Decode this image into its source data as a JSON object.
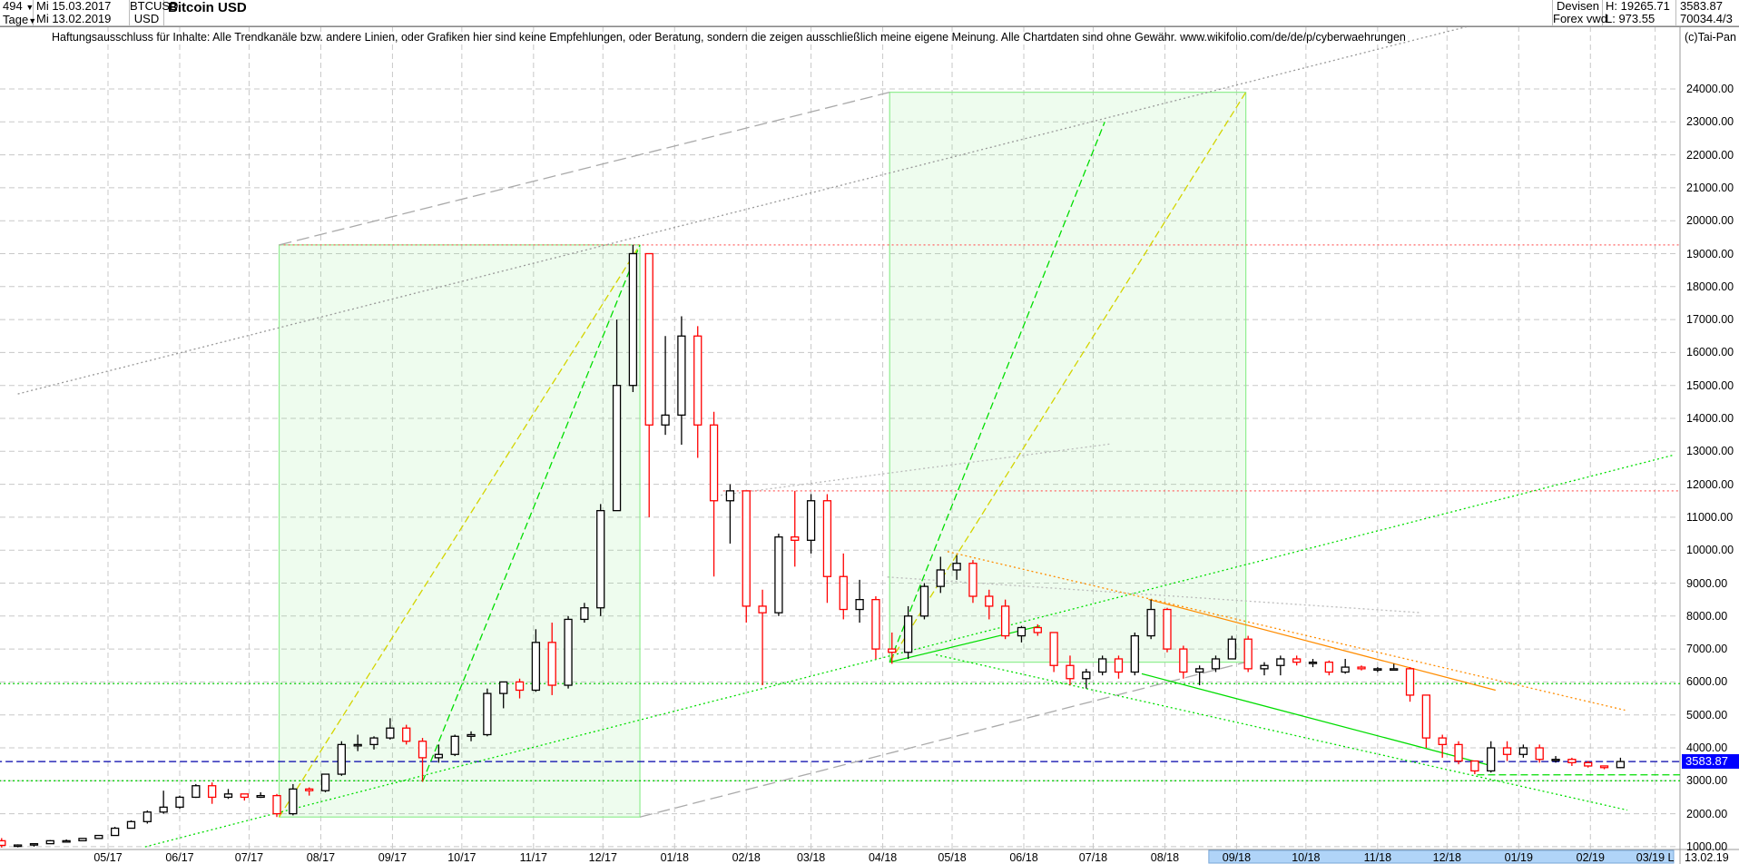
{
  "header": {
    "count": "494",
    "period": "Tage",
    "start_date": "Mi 15.03.2017",
    "end_date": "Mi 13.02.2019",
    "symbol": "BTCUSD",
    "currency": "USD",
    "title": "Bitcoin USD",
    "category": "Devisen",
    "source": "Forex vwd",
    "high": "H: 19265.71",
    "low": "L: 973.55",
    "last": "3583.87",
    "volume": "70034.4/3"
  },
  "disclaimer": "Haftungsausschluss für Inhalte: Alle Trendkanäle bzw. andere Linien, oder Grafiken hier sind keine Empfehlungen, oder Beratung, sondern die zeigen ausschließlich meine eigene Meinung. Alle Chartdaten sind ohne Gewähr.  www.wikifolio.com/de/de/p/cyberwaehrungen",
  "copyright": "(c)Tai-Pan",
  "end_date_label": "13.02.19",
  "last_marker": "L",
  "colors": {
    "up": "#000000",
    "down": "#ff0000",
    "box": "#90ee90",
    "price_label": "#0000ff"
  },
  "chart_data": {
    "type": "candlestick",
    "title": "Bitcoin USD",
    "grid": true,
    "ylim": [
      1000,
      24000
    ],
    "y_ticks": [
      "1000.00",
      "2000.00",
      "3000.00",
      "4000.00",
      "5000.00",
      "6000.00",
      "7000.00",
      "8000.00",
      "9000.00",
      "10000.00",
      "11000.00",
      "12000.00",
      "13000.00",
      "14000.00",
      "15000.00",
      "16000.00",
      "17000.00",
      "18000.00",
      "19000.00",
      "20000.00",
      "21000.00",
      "22000.00",
      "23000.00",
      "24000.00"
    ],
    "x_ticks": [
      {
        "label": "05/17",
        "date": "2017-05-01"
      },
      {
        "label": "06/17",
        "date": "2017-06-01"
      },
      {
        "label": "07/17",
        "date": "2017-07-01"
      },
      {
        "label": "08/17",
        "date": "2017-08-01"
      },
      {
        "label": "09/17",
        "date": "2017-09-01"
      },
      {
        "label": "10/17",
        "date": "2017-10-01"
      },
      {
        "label": "11/17",
        "date": "2017-11-01"
      },
      {
        "label": "12/17",
        "date": "2017-12-01"
      },
      {
        "label": "01/18",
        "date": "2018-01-01"
      },
      {
        "label": "02/18",
        "date": "2018-02-01"
      },
      {
        "label": "03/18",
        "date": "2018-03-01"
      },
      {
        "label": "04/18",
        "date": "2018-04-01"
      },
      {
        "label": "05/18",
        "date": "2018-05-01"
      },
      {
        "label": "06/18",
        "date": "2018-06-01"
      },
      {
        "label": "07/18",
        "date": "2018-07-01"
      },
      {
        "label": "08/18",
        "date": "2018-08-01"
      },
      {
        "label": "09/18",
        "date": "2018-09-01"
      },
      {
        "label": "10/18",
        "date": "2018-10-01"
      },
      {
        "label": "11/18",
        "date": "2018-11-01"
      },
      {
        "label": "12/18",
        "date": "2018-12-01"
      },
      {
        "label": "01/19",
        "date": "2019-01-01"
      },
      {
        "label": "02/19",
        "date": "2019-02-01"
      },
      {
        "label": "03/19",
        "date": "2019-03-01"
      }
    ],
    "last_price": 3583.87,
    "ohlc": [
      [
        "2017-03-13",
        1180,
        1260,
        974,
        1040
      ],
      [
        "2017-03-20",
        1040,
        1070,
        980,
        1050
      ],
      [
        "2017-03-27",
        1050,
        1100,
        1000,
        1090
      ],
      [
        "2017-04-03",
        1090,
        1200,
        1080,
        1180
      ],
      [
        "2017-04-10",
        1180,
        1220,
        1150,
        1180
      ],
      [
        "2017-04-17",
        1180,
        1260,
        1170,
        1250
      ],
      [
        "2017-04-24",
        1250,
        1350,
        1240,
        1340
      ],
      [
        "2017-05-01",
        1340,
        1600,
        1330,
        1560
      ],
      [
        "2017-05-08",
        1560,
        1800,
        1550,
        1760
      ],
      [
        "2017-05-15",
        1760,
        2100,
        1700,
        2050
      ],
      [
        "2017-05-22",
        2050,
        2700,
        2000,
        2200
      ],
      [
        "2017-05-29",
        2200,
        2550,
        2150,
        2500
      ],
      [
        "2017-06-05",
        2500,
        2900,
        2480,
        2850
      ],
      [
        "2017-06-12",
        2850,
        2950,
        2300,
        2500
      ],
      [
        "2017-06-19",
        2500,
        2750,
        2450,
        2600
      ],
      [
        "2017-06-26",
        2600,
        2600,
        2400,
        2500
      ],
      [
        "2017-07-03",
        2500,
        2650,
        2480,
        2550
      ],
      [
        "2017-07-10",
        2550,
        2600,
        1900,
        2000
      ],
      [
        "2017-07-17",
        2000,
        2900,
        1950,
        2750
      ],
      [
        "2017-07-24",
        2750,
        2800,
        2550,
        2700
      ],
      [
        "2017-07-31",
        2700,
        3200,
        2650,
        3200
      ],
      [
        "2017-08-07",
        3200,
        4200,
        3150,
        4100
      ],
      [
        "2017-08-14",
        4100,
        4400,
        3900,
        4100
      ],
      [
        "2017-08-21",
        4100,
        4350,
        3950,
        4300
      ],
      [
        "2017-08-28",
        4300,
        4900,
        4250,
        4600
      ],
      [
        "2017-09-04",
        4600,
        4700,
        4100,
        4200
      ],
      [
        "2017-09-11",
        4200,
        4300,
        2970,
        3700
      ],
      [
        "2017-09-18",
        3700,
        4100,
        3550,
        3800
      ],
      [
        "2017-09-25",
        3800,
        4400,
        3750,
        4350
      ],
      [
        "2017-10-02",
        4350,
        4500,
        4200,
        4400
      ],
      [
        "2017-10-09",
        4400,
        5800,
        4350,
        5650
      ],
      [
        "2017-10-16",
        5650,
        6000,
        5200,
        6000
      ],
      [
        "2017-10-23",
        6000,
        6100,
        5500,
        5750
      ],
      [
        "2017-10-30",
        5750,
        7600,
        5700,
        7200
      ],
      [
        "2017-11-06",
        7200,
        7800,
        5600,
        5900
      ],
      [
        "2017-11-13",
        5900,
        8000,
        5800,
        7900
      ],
      [
        "2017-11-20",
        7900,
        8400,
        7800,
        8250
      ],
      [
        "2017-11-27",
        8250,
        11400,
        8000,
        11200
      ],
      [
        "2017-12-04",
        11200,
        17000,
        11200,
        15000
      ],
      [
        "2017-12-11",
        15000,
        19265.71,
        14800,
        19000
      ],
      [
        "2017-12-18",
        19000,
        19000,
        11000,
        13800
      ],
      [
        "2017-12-25",
        13800,
        16500,
        13500,
        14100
      ],
      [
        "2018-01-01",
        14100,
        17100,
        13200,
        16500
      ],
      [
        "2018-01-08",
        16500,
        16800,
        12800,
        13800
      ],
      [
        "2018-01-15",
        13800,
        14200,
        9200,
        11500
      ],
      [
        "2018-01-22",
        11500,
        12000,
        10200,
        11800
      ],
      [
        "2018-01-29",
        11800,
        11800,
        7800,
        8300
      ],
      [
        "2018-02-05",
        8300,
        8800,
        5900,
        8100
      ],
      [
        "2018-02-12",
        8100,
        10500,
        8000,
        10400
      ],
      [
        "2018-02-19",
        10400,
        11800,
        9500,
        10300
      ],
      [
        "2018-02-26",
        10300,
        11700,
        9900,
        11500
      ],
      [
        "2018-03-05",
        11500,
        11700,
        8400,
        9200
      ],
      [
        "2018-03-12",
        9200,
        9900,
        7900,
        8200
      ],
      [
        "2018-03-19",
        8200,
        9100,
        7800,
        8500
      ],
      [
        "2018-03-26",
        8500,
        8600,
        6700,
        7000
      ],
      [
        "2018-04-02",
        7000,
        7500,
        6550,
        6900
      ],
      [
        "2018-04-09",
        6900,
        8300,
        6700,
        8000
      ],
      [
        "2018-04-16",
        8000,
        9000,
        7900,
        8900
      ],
      [
        "2018-04-23",
        8900,
        9800,
        8700,
        9400
      ],
      [
        "2018-04-30",
        9400,
        9850,
        9100,
        9600
      ],
      [
        "2018-05-07",
        9600,
        9700,
        8400,
        8600
      ],
      [
        "2018-05-14",
        8600,
        8800,
        7900,
        8300
      ],
      [
        "2018-05-21",
        8300,
        8500,
        7300,
        7400
      ],
      [
        "2018-05-28",
        7400,
        7700,
        7200,
        7650
      ],
      [
        "2018-06-04",
        7650,
        7750,
        7400,
        7500
      ],
      [
        "2018-06-11",
        7500,
        7500,
        6300,
        6500
      ],
      [
        "2018-06-18",
        6500,
        6800,
        5900,
        6100
      ],
      [
        "2018-06-25",
        6100,
        6400,
        5800,
        6300
      ],
      [
        "2018-07-02",
        6300,
        6800,
        6200,
        6700
      ],
      [
        "2018-07-09",
        6700,
        6800,
        6100,
        6300
      ],
      [
        "2018-07-16",
        6300,
        7500,
        6200,
        7400
      ],
      [
        "2018-07-23",
        7400,
        8500,
        7300,
        8200
      ],
      [
        "2018-07-30",
        8200,
        8250,
        6900,
        7000
      ],
      [
        "2018-08-06",
        7000,
        7100,
        6100,
        6300
      ],
      [
        "2018-08-13",
        6300,
        6500,
        5900,
        6400
      ],
      [
        "2018-08-20",
        6400,
        6800,
        6300,
        6700
      ],
      [
        "2018-08-27",
        6700,
        7400,
        6700,
        7300
      ],
      [
        "2018-09-03",
        7300,
        7400,
        6300,
        6400
      ],
      [
        "2018-09-10",
        6400,
        6600,
        6200,
        6500
      ],
      [
        "2018-09-17",
        6500,
        6800,
        6200,
        6700
      ],
      [
        "2018-09-24",
        6700,
        6800,
        6500,
        6600
      ],
      [
        "2018-10-01",
        6600,
        6700,
        6450,
        6600
      ],
      [
        "2018-10-08",
        6600,
        6650,
        6200,
        6300
      ],
      [
        "2018-10-15",
        6300,
        6700,
        6250,
        6450
      ],
      [
        "2018-10-22",
        6450,
        6500,
        6350,
        6400
      ],
      [
        "2018-10-29",
        6400,
        6450,
        6300,
        6400
      ],
      [
        "2018-11-05",
        6400,
        6550,
        6350,
        6400
      ],
      [
        "2018-11-12",
        6400,
        6450,
        5400,
        5600
      ],
      [
        "2018-11-19",
        5600,
        5600,
        4000,
        4300
      ],
      [
        "2018-11-26",
        4300,
        4400,
        3700,
        4100
      ],
      [
        "2018-12-03",
        4100,
        4200,
        3500,
        3600
      ],
      [
        "2018-12-10",
        3600,
        3600,
        3200,
        3300
      ],
      [
        "2018-12-17",
        3300,
        4200,
        3250,
        4000
      ],
      [
        "2018-12-24",
        4000,
        4200,
        3600,
        3800
      ],
      [
        "2018-12-31",
        3800,
        4100,
        3700,
        4000
      ],
      [
        "2019-01-07",
        4000,
        4100,
        3550,
        3650
      ],
      [
        "2019-01-14",
        3650,
        3750,
        3550,
        3650
      ],
      [
        "2019-01-21",
        3650,
        3700,
        3450,
        3550
      ],
      [
        "2019-01-28",
        3550,
        3600,
        3400,
        3450
      ],
      [
        "2019-02-04",
        3450,
        3460,
        3350,
        3400
      ],
      [
        "2019-02-11",
        3400,
        3700,
        3380,
        3583.87
      ]
    ],
    "boxes": [
      {
        "from": [
          "2017-07-14",
          1900
        ],
        "to": [
          "2017-12-17",
          19265.71
        ],
        "color": "#90ee90"
      },
      {
        "from": [
          "2018-04-04",
          6600
        ],
        "to": [
          "2018-09-05",
          23900
        ],
        "color": "#90ee90"
      }
    ],
    "lines": [
      {
        "from": [
          "2017-07-14",
          1900
        ],
        "to": [
          "2017-12-17",
          19265.71
        ],
        "color": "#d4d400",
        "style": "dash"
      },
      {
        "from": [
          "2017-09-14",
          2970
        ],
        "to": [
          "2017-12-17",
          19265.71
        ],
        "color": "#00dd00",
        "style": "dash"
      },
      {
        "from": [
          "2018-04-04",
          6600
        ],
        "to": [
          "2018-09-05",
          23900
        ],
        "color": "#d4d400",
        "style": "dash"
      },
      {
        "from": [
          "2018-04-04",
          6600
        ],
        "to": [
          "2018-07-06",
          23000
        ],
        "color": "#00dd00",
        "style": "dash"
      },
      {
        "from": [
          "2017-07-14",
          19265.71
        ],
        "to": [
          "2018-04-04",
          23900
        ],
        "color": "#aaaaaa",
        "style": "longdash"
      },
      {
        "from": [
          "2017-12-17",
          1900
        ],
        "to": [
          "2018-09-05",
          6600
        ],
        "color": "#aaaaaa",
        "style": "longdash"
      },
      {
        "from": [
          "2017-03-23",
          14742
        ],
        "to": [
          "2018-12-23",
          26129
        ],
        "color": "#999999",
        "style": "dot"
      },
      {
        "from": [
          "2017-05-17",
          995
        ],
        "to": [
          "2019-03-09",
          12889
        ],
        "color": "#00dd00",
        "style": "dot"
      },
      {
        "from": [
          "2018-01-19",
          11649
        ],
        "to": [
          "2018-07-08",
          13220
        ],
        "color": "#bbbbbb",
        "style": "dot"
      },
      {
        "from": [
          "2018-04-03",
          9184
        ],
        "to": [
          "2018-11-19",
          8106
        ],
        "color": "#bbbbbb",
        "style": "dot"
      },
      {
        "from": [
          "2018-07-25",
          8505
        ],
        "to": [
          "2018-12-22",
          5748
        ],
        "color": "#ff8c00",
        "style": "solid"
      },
      {
        "from": [
          "2018-04-29",
          9958
        ],
        "to": [
          "2019-02-16",
          5142
        ],
        "color": "#ff8c00",
        "style": "dot"
      },
      {
        "from": [
          "2018-07-22",
          6250
        ],
        "to": [
          "2018-12-20",
          3460
        ],
        "color": "#00dd00",
        "style": "solid"
      },
      {
        "from": [
          "2018-04-24",
          6824
        ],
        "to": [
          "2019-02-17",
          2109
        ],
        "color": "#00dd00",
        "style": "dot"
      },
      {
        "from": [
          "2018-04-04",
          6600
        ],
        "to": [
          "2018-06-08",
          7700
        ],
        "color": "#00dd00",
        "style": "solid"
      }
    ],
    "hlines": [
      {
        "price": 19265.71,
        "from": "2017-07-14",
        "color": "#ff6666",
        "style": "dot"
      },
      {
        "price": 11800,
        "from": "2018-01-22",
        "color": "#ff6666",
        "style": "dot"
      },
      {
        "price": 5950,
        "from": "2017-03-13",
        "color": "#00cc00",
        "style": "dot"
      },
      {
        "price": 3000,
        "from": "2017-03-13",
        "color": "#00cc00",
        "style": "dot"
      },
      {
        "price": 3180,
        "from": "2018-12-14",
        "color": "#00dd00",
        "style": "dash"
      },
      {
        "price": 3583.87,
        "from": "2017-03-13",
        "color": "#0000aa",
        "style": "dash"
      }
    ],
    "range_highlight": {
      "from": "2018-08-20",
      "to": "2019-03-09",
      "color": "#b0d4f8"
    }
  }
}
